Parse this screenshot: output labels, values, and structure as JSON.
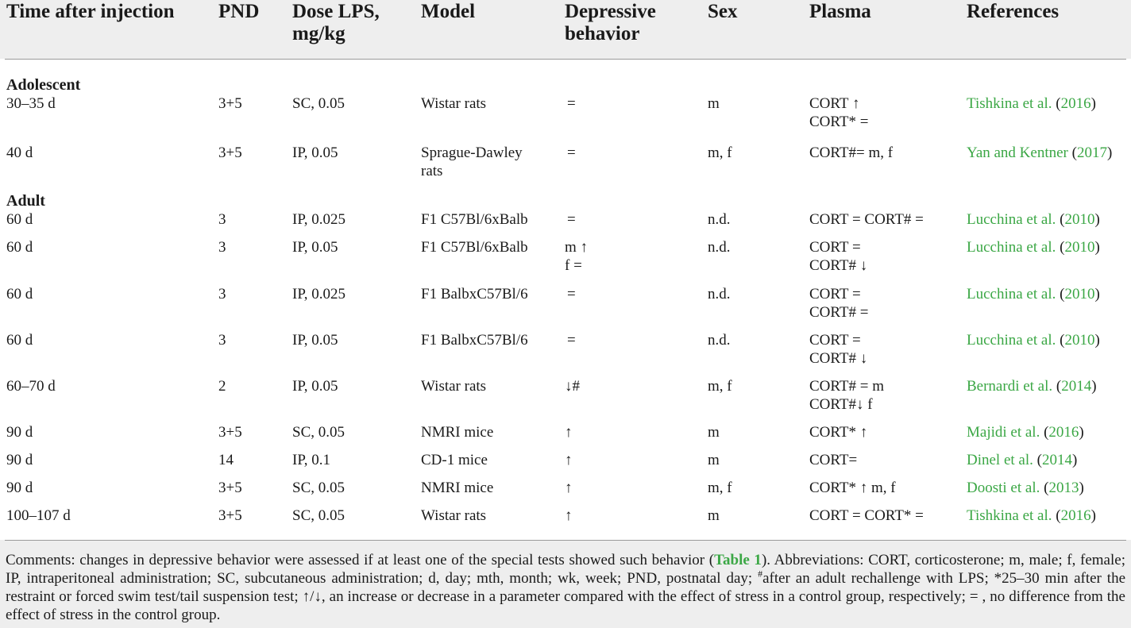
{
  "headers": [
    {
      "line1": "Time after injection",
      "line2": ""
    },
    {
      "line1": "PND",
      "line2": ""
    },
    {
      "line1": "Dose LPS,",
      "line2": "mg/kg"
    },
    {
      "line1": "Model",
      "line2": ""
    },
    {
      "line1": "Depressive",
      "line2": "behavior"
    },
    {
      "line1": "Sex",
      "line2": ""
    },
    {
      "line1": "Plasma",
      "line2": ""
    },
    {
      "line1": "References",
      "line2": ""
    }
  ],
  "groups": {
    "adolescent": "Adolescent",
    "adult": "Adult"
  },
  "rows": [
    {
      "time": "30–35 d",
      "pnd": "3+5",
      "dose": "SC, 0.05",
      "model": [
        "Wistar rats"
      ],
      "dep": [
        "="
      ],
      "sex": "m",
      "plasma": [
        "CORT ↑",
        "CORT* ="
      ],
      "ref_name": "Tishkina et al.",
      "ref_year": "2016"
    },
    {
      "time": "40 d",
      "pnd": "3+5",
      "dose": "IP, 0.05",
      "model": [
        "Sprague-Dawley",
        "rats"
      ],
      "dep": [
        "="
      ],
      "sex": "m, f",
      "plasma": [
        "CORT#= m, f"
      ],
      "ref_name": "Yan and Kentner",
      "ref_year": "2017"
    },
    {
      "time": "60 d",
      "pnd": "3",
      "dose": "IP, 0.025",
      "model": [
        "F1 C57Bl/6xBalb"
      ],
      "dep": [
        "="
      ],
      "sex": "n.d.",
      "plasma": [
        "CORT = CORT# ="
      ],
      "ref_name": "Lucchina et al.",
      "ref_year": "2010"
    },
    {
      "time": "60 d",
      "pnd": "3",
      "dose": "IP, 0.05",
      "model": [
        "F1 C57Bl/6xBalb"
      ],
      "dep": [
        "m ↑",
        "f ="
      ],
      "sex": "n.d.",
      "plasma": [
        "CORT =",
        "CORT# ↓"
      ],
      "ref_name": "Lucchina et al.",
      "ref_year": "2010"
    },
    {
      "time": "60 d",
      "pnd": "3",
      "dose": "IP, 0.025",
      "model": [
        "F1 BalbxC57Bl/6"
      ],
      "dep": [
        "="
      ],
      "sex": "n.d.",
      "plasma": [
        "CORT =",
        "CORT# ="
      ],
      "ref_name": "Lucchina et al.",
      "ref_year": "2010"
    },
    {
      "time": "60 d",
      "pnd": "3",
      "dose": "IP, 0.05",
      "model": [
        "F1 BalbxC57Bl/6"
      ],
      "dep": [
        "="
      ],
      "sex": "n.d.",
      "plasma": [
        "CORT =",
        "CORT# ↓"
      ],
      "ref_name": "Lucchina et al.",
      "ref_year": "2010"
    },
    {
      "time": "60–70 d",
      "pnd": "2",
      "dose": "IP, 0.05",
      "model": [
        "Wistar rats"
      ],
      "dep": [
        "↓#"
      ],
      "sex": "m, f",
      "plasma": [
        "CORT# = m",
        "CORT#↓ f"
      ],
      "ref_name": "Bernardi et al.",
      "ref_year": "2014"
    },
    {
      "time": "90 d",
      "pnd": "3+5",
      "dose": "SC, 0.05",
      "model": [
        "NMRI mice"
      ],
      "dep": [
        "↑"
      ],
      "sex": "m",
      "plasma": [
        "CORT* ↑"
      ],
      "ref_name": "Majidi et al.",
      "ref_year": "2016"
    },
    {
      "time": "90 d",
      "pnd": "14",
      "dose": "IP, 0.1",
      "model": [
        "CD-1 mice"
      ],
      "dep": [
        "↑"
      ],
      "sex": "m",
      "plasma": [
        "CORT="
      ],
      "ref_name": "Dinel et al.",
      "ref_year": "2014"
    },
    {
      "time": "90 d",
      "pnd": "3+5",
      "dose": "SC, 0.05",
      "model": [
        "NMRI mice"
      ],
      "dep": [
        "↑"
      ],
      "sex": "m, f",
      "plasma": [
        "CORT* ↑ m, f"
      ],
      "ref_name": "Doosti et al.",
      "ref_year": "2013"
    },
    {
      "time": "100–107 d",
      "pnd": "3+5",
      "dose": "SC, 0.05",
      "model": [
        "Wistar rats"
      ],
      "dep": [
        "↑"
      ],
      "sex": "m",
      "plasma": [
        "CORT = CORT* ="
      ],
      "ref_name": "Tishkina et al.",
      "ref_year": "2016"
    }
  ],
  "footnote": {
    "part1": "Comments: changes in depressive behavior were assessed if at least one of the special tests showed such behavior (",
    "link": "Table 1",
    "part2": "). Abbreviations: CORT, corticosterone; m, male; f, female; IP, intraperitoneal administration; SC, subcutaneous administration; d, day; mth, month; wk, week; PND, postnatal day; ",
    "sup_mark": "#",
    "part3": "after an adult rechallenge with LPS; *25–30 min after the restraint or forced swim test/tail suspension test; ↑/↓, an increase or decrease in a parameter compared with the effect of stress in a control group, respectively; = , no difference from the effect of stress in the control group."
  }
}
